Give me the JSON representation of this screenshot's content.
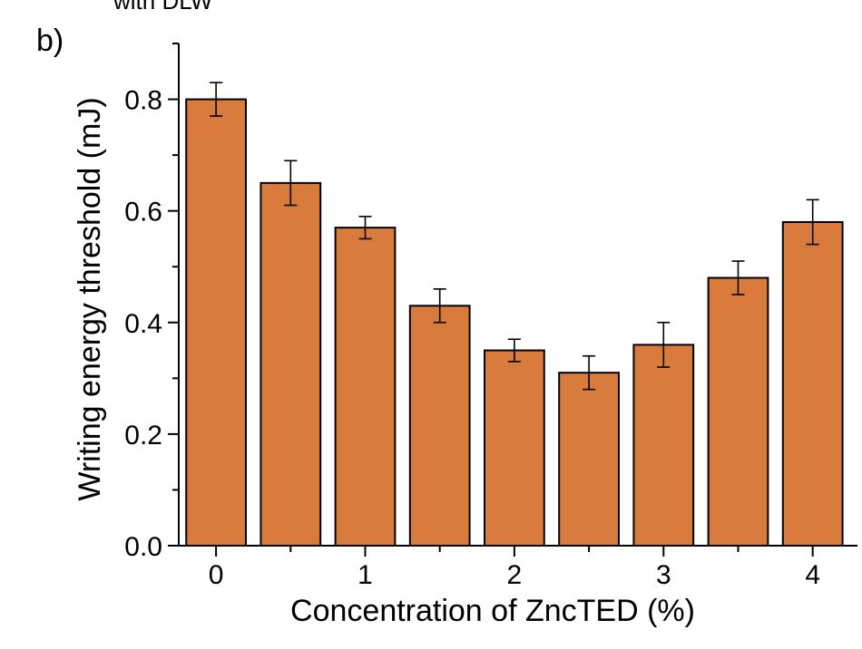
{
  "figure": {
    "clipped_text": "with DLW",
    "panel_label": "b)"
  },
  "chart_data": {
    "type": "bar",
    "x": [
      0,
      0.5,
      1,
      1.5,
      2,
      2.5,
      3,
      3.5,
      4
    ],
    "values": [
      0.8,
      0.65,
      0.57,
      0.43,
      0.35,
      0.31,
      0.36,
      0.48,
      0.58
    ],
    "errors": [
      0.03,
      0.04,
      0.02,
      0.03,
      0.02,
      0.03,
      0.04,
      0.03,
      0.04
    ],
    "xlabel": "Concentration of ZncTED (%)",
    "ylabel": "Writing energy threshold (mJ)",
    "xticks": [
      "0",
      "1",
      "2",
      "3",
      "4"
    ],
    "yticks": [
      "0.0",
      "0.2",
      "0.4",
      "0.6",
      "0.8"
    ],
    "ylim": [
      0,
      0.9
    ],
    "xlim": [
      -0.25,
      4.3
    ],
    "bar_color": "#d97b3c",
    "grid": false
  }
}
